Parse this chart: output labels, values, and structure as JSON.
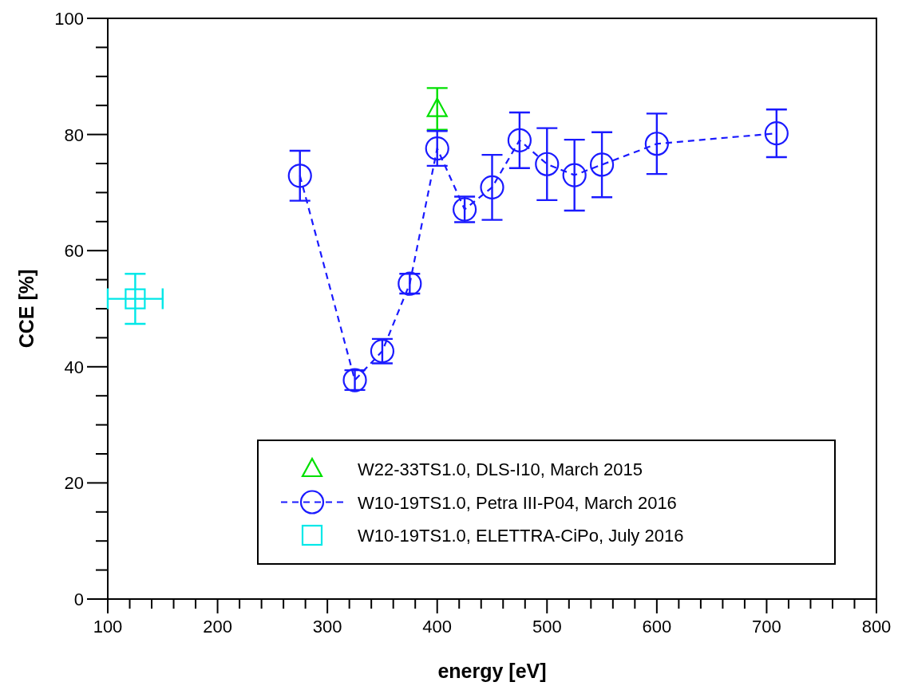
{
  "chart_data": {
    "type": "scatter",
    "xlabel": "energy [eV]",
    "ylabel": "CCE [%]",
    "xlim": [
      100,
      800
    ],
    "ylim": [
      0,
      100
    ],
    "xticks": [
      100,
      {
        "value": 120,
        "label": null
      },
      {
        "value": 140,
        "label": null
      },
      {
        "value": 160,
        "label": null
      },
      {
        "value": 180,
        "label": null
      },
      200,
      {
        "value": 220,
        "label": null
      },
      {
        "value": 240,
        "label": null
      },
      {
        "value": 260,
        "label": null
      },
      {
        "value": 280,
        "label": null
      },
      300,
      {
        "value": 320,
        "label": null
      },
      {
        "value": 340,
        "label": null
      },
      {
        "value": 360,
        "label": null
      },
      {
        "value": 380,
        "label": null
      },
      400,
      {
        "value": 420,
        "label": null
      },
      {
        "value": 440,
        "label": null
      },
      {
        "value": 460,
        "label": null
      },
      {
        "value": 480,
        "label": null
      },
      500,
      {
        "value": 520,
        "label": null
      },
      {
        "value": 540,
        "label": null
      },
      {
        "value": 560,
        "label": null
      },
      {
        "value": 580,
        "label": null
      },
      600,
      {
        "value": 620,
        "label": null
      },
      {
        "value": 640,
        "label": null
      },
      {
        "value": 660,
        "label": null
      },
      {
        "value": 680,
        "label": null
      },
      700,
      {
        "value": 720,
        "label": null
      },
      {
        "value": 740,
        "label": null
      },
      {
        "value": 760,
        "label": null
      },
      {
        "value": 780,
        "label": null
      },
      800
    ],
    "yticks": [
      0,
      {
        "value": 5,
        "label": null
      },
      {
        "value": 10,
        "label": null
      },
      {
        "value": 15,
        "label": null
      },
      20,
      {
        "value": 25,
        "label": null
      },
      {
        "value": 30,
        "label": null
      },
      {
        "value": 35,
        "label": null
      },
      40,
      {
        "value": 45,
        "label": null
      },
      {
        "value": 50,
        "label": null
      },
      {
        "value": 55,
        "label": null
      },
      60,
      {
        "value": 65,
        "label": null
      },
      {
        "value": 70,
        "label": null
      },
      {
        "value": 75,
        "label": null
      },
      80,
      {
        "value": 85,
        "label": null
      },
      {
        "value": 90,
        "label": null
      },
      {
        "value": 95,
        "label": null
      },
      100
    ],
    "grid": false,
    "legend": "bottom right",
    "series": [
      {
        "name": "W22-33TS1.0, DLS-I10, March 2015",
        "type": "scatter",
        "marker": "triangle",
        "color": "#00e000",
        "x": [
          400
        ],
        "values": [
          84.4
        ],
        "errors": [
          3.6
        ]
      },
      {
        "name": "W10-19TS1.0, Petra III-P04, March 2016",
        "type": "line",
        "marker": "circle",
        "line_style": "dashed",
        "color": "#1a1aff",
        "x": [
          275,
          325,
          350,
          375,
          400,
          425,
          450,
          475,
          500,
          525,
          550,
          600,
          709
        ],
        "values": [
          72.9,
          37.7,
          42.7,
          54.3,
          77.6,
          67.1,
          70.9,
          79.0,
          74.9,
          73.0,
          74.8,
          78.4,
          80.2
        ],
        "errors": [
          4.3,
          1.7,
          2.1,
          1.7,
          3.0,
          2.2,
          5.6,
          4.8,
          6.2,
          6.1,
          5.6,
          5.2,
          4.1
        ]
      },
      {
        "name": "W10-19TS1.0, ELETTRA-CiPo, July 2016",
        "type": "scatter",
        "marker": "square",
        "color": "#00e8e8",
        "x": [
          125
        ],
        "values": [
          51.7
        ],
        "errors": [
          4.3
        ],
        "xerrors": [
          25
        ]
      }
    ]
  }
}
